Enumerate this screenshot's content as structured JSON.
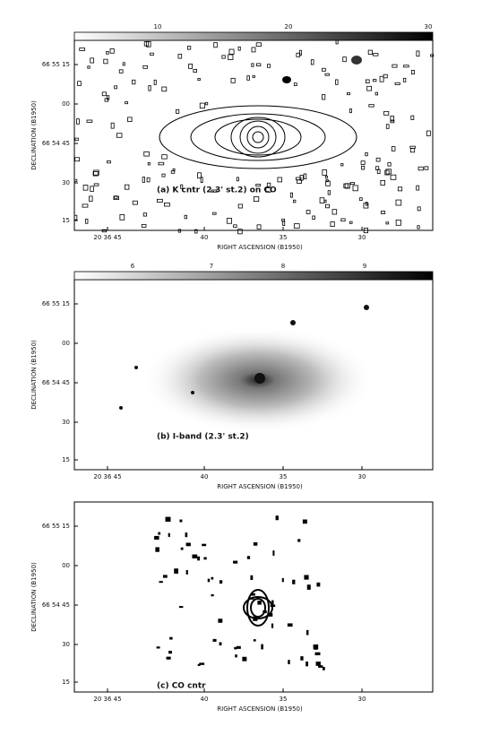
{
  "panels": [
    {
      "colorbar_ticks": [
        "10",
        "20",
        "30"
      ],
      "y_ticks": [
        "66 55 15",
        "00",
        "66 54 45",
        "30",
        "15"
      ],
      "x_ticks": [
        "20 36 45",
        "40",
        "35",
        "30"
      ],
      "y_label": "DECLINATION (B1950)",
      "x_label": "RIGHT ASCENSION (B1950)",
      "label": "(a) K cntr (2.3' st.2) on CO"
    },
    {
      "colorbar_ticks": [
        "6",
        "7",
        "8",
        "9"
      ],
      "y_ticks": [
        "66 55 15",
        "00",
        "66 54 45",
        "30",
        "15"
      ],
      "x_ticks": [
        "20 36 45",
        "40",
        "35",
        "30"
      ],
      "y_label": "DECLINATION (B1950)",
      "x_label": "RIGHT ASCENSION (B1950)",
      "label": "(b) I-band (2.3' st.2)"
    },
    {
      "colorbar_ticks": [],
      "y_ticks": [
        "66 55 15",
        "00",
        "66 54 45",
        "30",
        "15"
      ],
      "x_ticks": [
        "20 36 45",
        "40",
        "35",
        "30"
      ],
      "y_label": "DECLINATION (B1950)",
      "x_label": "RIGHT ASCENSION (B1950)",
      "label": "(c) CO cntr"
    }
  ]
}
